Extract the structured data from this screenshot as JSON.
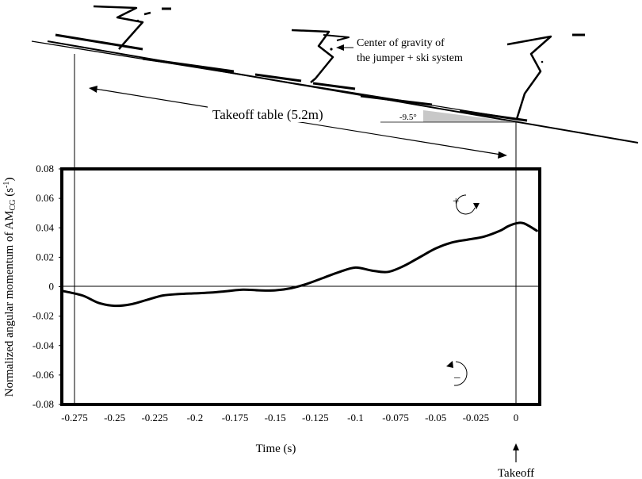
{
  "figure": {
    "cg_label_line1": "Center of gravity of",
    "cg_label_line2": "the jumper + ski system",
    "table_label": "Takeoff table (5.2m)",
    "angle_label": "-9.5°",
    "takeoff_label": "Takeoff",
    "plus_symbol": "+",
    "minus_symbol": "–"
  },
  "chart_data": {
    "type": "line",
    "xlabel": "Time (s)",
    "ylabel_main": "Normalized angular momentum of AM",
    "ylabel_sub": "CG",
    "ylabel_unit_open": " (s",
    "ylabel_unit_sup": "-1",
    "ylabel_unit_close": ")",
    "xlim": [
      -0.275,
      0.013
    ],
    "ylim": [
      -0.08,
      0.08
    ],
    "x_ticks": [
      "-0.275",
      "-0.25",
      "-0.225",
      "-0.2",
      "-0.175",
      "-0.15",
      "-0.125",
      "-0.1",
      "-0.075",
      "-0.05",
      "-0.025",
      "0"
    ],
    "y_ticks": [
      "0.08",
      "0.06",
      "0.04",
      "0.02",
      "0",
      "-0.02",
      "-0.04",
      "-0.06",
      "-0.08"
    ],
    "grid": false,
    "series": [
      {
        "color": "#000000",
        "x": [
          -0.282,
          -0.27,
          -0.26,
          -0.25,
          -0.24,
          -0.23,
          -0.22,
          -0.21,
          -0.2,
          -0.19,
          -0.18,
          -0.17,
          -0.16,
          -0.15,
          -0.14,
          -0.13,
          -0.12,
          -0.11,
          -0.1,
          -0.09,
          -0.08,
          -0.07,
          -0.06,
          -0.05,
          -0.04,
          -0.03,
          -0.02,
          -0.01,
          -0.005,
          0.0,
          0.005,
          0.013
        ],
        "y": [
          -0.003,
          -0.006,
          -0.011,
          -0.013,
          -0.012,
          -0.009,
          -0.006,
          -0.005,
          -0.0045,
          -0.004,
          -0.003,
          -0.002,
          -0.0025,
          -0.0025,
          -0.001,
          0.002,
          0.006,
          0.01,
          0.013,
          0.011,
          0.01,
          0.014,
          0.02,
          0.026,
          0.03,
          0.032,
          0.034,
          0.038,
          0.041,
          0.043,
          0.043,
          0.038
        ]
      }
    ]
  }
}
